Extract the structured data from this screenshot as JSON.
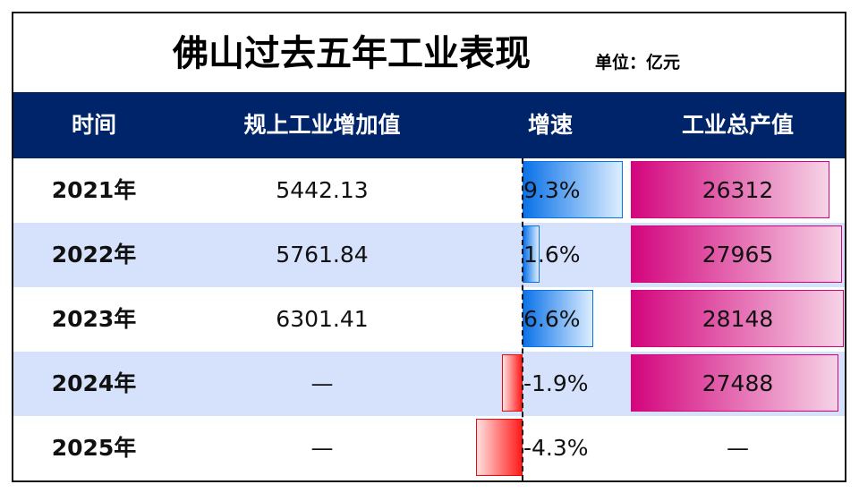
{
  "title": "佛山过去五年工业表现",
  "unit": "单位：亿元",
  "header": {
    "col_time": "时间",
    "col_value_added": "规上工业增加值",
    "col_growth": "增速",
    "col_output": "工业总产值"
  },
  "colors": {
    "header_bg": "#00246a",
    "alt_row_bg": "#d6e2fb",
    "positive_bar": "#0a72e8",
    "negative_bar": "#ff1a1a",
    "output_bar": "#d3057d"
  },
  "chart_data": {
    "type": "table",
    "rows": [
      {
        "year": "2021年",
        "value_added": "5442.13",
        "growth": 9.3,
        "growth_label": "9.3%",
        "output": 26312,
        "output_label": "26312"
      },
      {
        "year": "2022年",
        "value_added": "5761.84",
        "growth": 1.6,
        "growth_label": "1.6%",
        "output": 27965,
        "output_label": "27965"
      },
      {
        "year": "2023年",
        "value_added": "6301.41",
        "growth": 6.6,
        "growth_label": "6.6%",
        "output": 28148,
        "output_label": "28148"
      },
      {
        "year": "2024年",
        "value_added": "—",
        "growth": -1.9,
        "growth_label": "-1.9%",
        "output": 27488,
        "output_label": "27488"
      },
      {
        "year": "2025年",
        "value_added": "—",
        "growth": -4.3,
        "growth_label": "-4.3%",
        "output": null,
        "output_label": "—"
      }
    ]
  }
}
